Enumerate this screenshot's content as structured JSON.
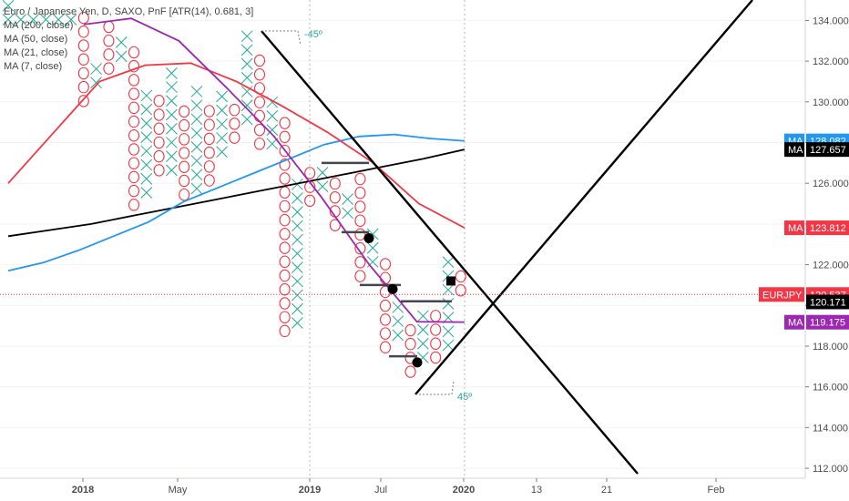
{
  "chart_data": {
    "type": "point_and_figure",
    "title": "Euro / Japanese Yen, D, SAXO, PnF [ATR(14), 0.681, 3]",
    "legend": [
      "MA (200, close)",
      "MA (50, close)",
      "MA (21, close)",
      "MA (7, close)"
    ],
    "y_ticks": [
      "134.000",
      "132.000",
      "130.000",
      "128.000",
      "126.000",
      "124.000",
      "122.000",
      "120.000",
      "118.000",
      "116.000",
      "114.000",
      "112.000"
    ],
    "y_tick_values": [
      134,
      132,
      130,
      128,
      126,
      124,
      122,
      120,
      118,
      116,
      114,
      112
    ],
    "ylim": [
      111.6,
      134.6
    ],
    "x_ticks": [
      "2018",
      "May",
      "2019",
      "Jul",
      "2020",
      "13",
      "21",
      "Feb"
    ],
    "price_labels": [
      {
        "tag": "MA",
        "value": "128.082",
        "color": "#2196f3"
      },
      {
        "tag": "MA",
        "value": "127.657",
        "color": "#000000"
      },
      {
        "tag": "MA",
        "value": "123.812",
        "color": "#f23645"
      },
      {
        "tag": "EURJPY",
        "value": "120.537",
        "color": "#f23645"
      },
      {
        "tag": "",
        "value": "120.171",
        "color": "#000000"
      },
      {
        "tag": "MA",
        "value": "119.175",
        "color": "#9c27b0"
      }
    ],
    "annotations": [
      "-45º",
      "45º"
    ],
    "pnf_columns": [
      {
        "type": "X",
        "low": 133.7,
        "high": 135.0
      },
      {
        "type": "X",
        "low": 133.7,
        "high": 134.6
      },
      {
        "type": "X",
        "low": 133.7,
        "high": 134.3
      },
      {
        "type": "X",
        "low": 133.7,
        "high": 134.3
      },
      {
        "type": "X",
        "low": 133.7,
        "high": 134.3
      },
      {
        "type": "X",
        "low": 133.7,
        "high": 134.3
      },
      {
        "type": "O",
        "low": 129.7,
        "high": 134.3
      },
      {
        "type": "X",
        "low": 130.6,
        "high": 132.1
      },
      {
        "type": "O",
        "low": 131.3,
        "high": 134.2
      },
      {
        "type": "X",
        "low": 131.9,
        "high": 133.0
      },
      {
        "type": "O",
        "low": 124.6,
        "high": 132.8
      },
      {
        "type": "X",
        "low": 125.2,
        "high": 130.9
      },
      {
        "type": "O",
        "low": 126.3,
        "high": 130.3
      },
      {
        "type": "X",
        "low": 126.3,
        "high": 131.5
      },
      {
        "type": "O",
        "low": 125.1,
        "high": 130.2
      },
      {
        "type": "X",
        "low": 125.4,
        "high": 130.9
      },
      {
        "type": "O",
        "low": 125.8,
        "high": 130.2
      },
      {
        "type": "X",
        "low": 127.2,
        "high": 130.6
      },
      {
        "type": "O",
        "low": 127.9,
        "high": 130.1
      },
      {
        "type": "X",
        "low": 128.8,
        "high": 133.7
      },
      {
        "type": "O",
        "low": 127.6,
        "high": 132.4
      },
      {
        "type": "X",
        "low": 127.6,
        "high": 130.0
      },
      {
        "type": "O",
        "low": 118.4,
        "high": 129.6
      },
      {
        "type": "X",
        "low": 118.8,
        "high": 126.1
      },
      {
        "type": "O",
        "low": 124.8,
        "high": 126.9
      },
      {
        "type": "X",
        "low": 125.5,
        "high": 126.9
      },
      {
        "type": "O",
        "low": 123.6,
        "high": 126.1
      },
      {
        "type": "X",
        "low": 124.2,
        "high": 125.6
      },
      {
        "type": "O",
        "low": 121.1,
        "high": 126.5
      },
      {
        "type": "X",
        "low": 121.8,
        "high": 123.6
      },
      {
        "type": "O",
        "low": 117.6,
        "high": 122.6
      },
      {
        "type": "X",
        "low": 118.2,
        "high": 120.0
      },
      {
        "type": "O",
        "low": 116.4,
        "high": 119.2
      },
      {
        "type": "X",
        "low": 117.1,
        "high": 119.5
      },
      {
        "type": "O",
        "low": 117.1,
        "high": 120.0
      },
      {
        "type": "X",
        "low": 117.7,
        "high": 122.8
      },
      {
        "type": "O",
        "low": 120.4,
        "high": 122.1
      }
    ],
    "series": [
      {
        "name": "MA (200, close)",
        "color": "#000000",
        "values": [
          123.4,
          123.7,
          124.0,
          124.4,
          124.8,
          125.2,
          125.6,
          126.0,
          126.4,
          126.8,
          127.2,
          127.66
        ]
      },
      {
        "name": "MA (50, close)",
        "color": "#2196f3",
        "values": [
          121.7,
          122.1,
          122.7,
          123.4,
          124.1,
          125.1,
          125.8,
          126.5,
          127.2,
          127.9,
          128.3,
          128.4,
          128.2,
          128.08
        ]
      },
      {
        "name": "MA (21, close)",
        "color": "#f23645",
        "values": [
          126.0,
          128.5,
          131.0,
          131.8,
          131.9,
          131.0,
          129.8,
          128.5,
          127.0,
          125.0,
          123.81
        ]
      },
      {
        "name": "MA (7, close)",
        "color": "#9c27b0",
        "values": [
          133.8,
          134.1,
          133.0,
          130.7,
          128.3,
          125.3,
          122.0,
          119.2,
          119.18
        ]
      }
    ]
  }
}
